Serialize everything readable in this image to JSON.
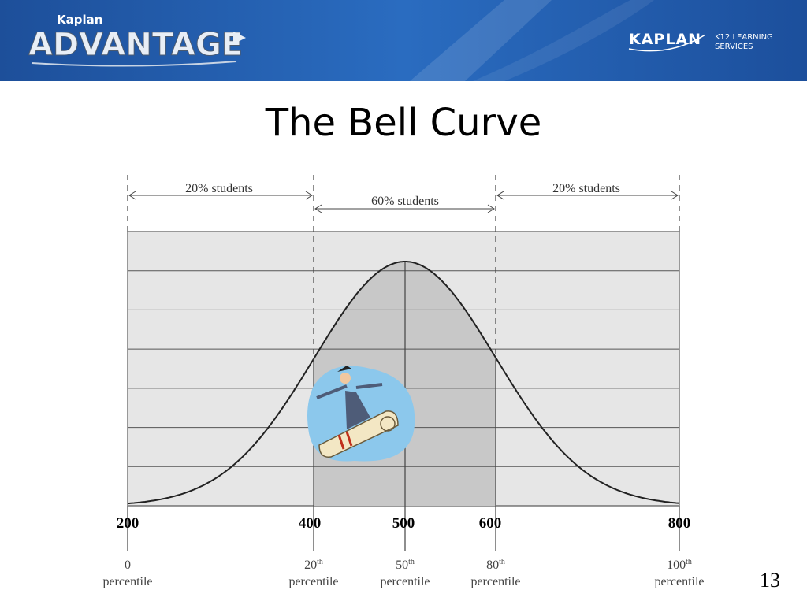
{
  "header": {
    "kicker": "Kaplan",
    "brand": "ADVANTAGE",
    "company": "KAPLAN",
    "division": [
      "K12 LEARNING",
      "SERVICES"
    ]
  },
  "title": "The Bell Curve",
  "diagram": {
    "spans": [
      "20% students",
      "60% students",
      "20% students"
    ],
    "scores": [
      200,
      400,
      500,
      600,
      800
    ],
    "percentiles": [
      {
        "number": "0",
        "word": "percentile"
      },
      {
        "number": "20",
        "suffix": "th",
        "word": "percentile"
      },
      {
        "number": "50",
        "suffix": "th",
        "word": "percentile"
      },
      {
        "number": "80",
        "suffix": "th",
        "word": "percentile"
      },
      {
        "number": "100",
        "suffix": "th",
        "word": "percentile"
      }
    ]
  },
  "page_number": "13"
}
